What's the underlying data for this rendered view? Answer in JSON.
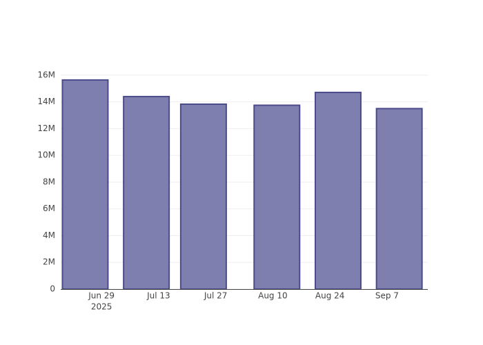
{
  "chart_data": {
    "type": "bar",
    "x": [
      "2025-06-25",
      "2025-07-10",
      "2025-07-24",
      "2025-08-11",
      "2025-08-26",
      "2025-09-10"
    ],
    "values": [
      15640000,
      14400000,
      13830000,
      13750000,
      14710000,
      13500000
    ],
    "color": "#7f7faf",
    "edge_color": "#4b4b8a",
    "xlim": [
      "2025-06-19",
      "2025-09-17"
    ],
    "xticks": [
      {
        "value": "2025-06-29",
        "label": [
          "Jun 29",
          "2025"
        ]
      },
      {
        "value": "2025-07-13",
        "label": [
          "Jul 13"
        ]
      },
      {
        "value": "2025-07-27",
        "label": [
          "Jul 27"
        ]
      },
      {
        "value": "2025-08-10",
        "label": [
          "Aug 10"
        ]
      },
      {
        "value": "2025-08-24",
        "label": [
          "Aug 24"
        ]
      },
      {
        "value": "2025-09-07",
        "label": [
          "Sep 7"
        ]
      }
    ],
    "ylim": [
      0,
      16460000
    ],
    "yticks": [
      {
        "value": 0,
        "label": "0"
      },
      {
        "value": 2000000,
        "label": "2M"
      },
      {
        "value": 4000000,
        "label": "4M"
      },
      {
        "value": 6000000,
        "label": "6M"
      },
      {
        "value": 8000000,
        "label": "8M"
      },
      {
        "value": 10000000,
        "label": "10M"
      },
      {
        "value": 12000000,
        "label": "12M"
      },
      {
        "value": 14000000,
        "label": "14M"
      },
      {
        "value": 16000000,
        "label": "16M"
      }
    ],
    "grid": true
  }
}
